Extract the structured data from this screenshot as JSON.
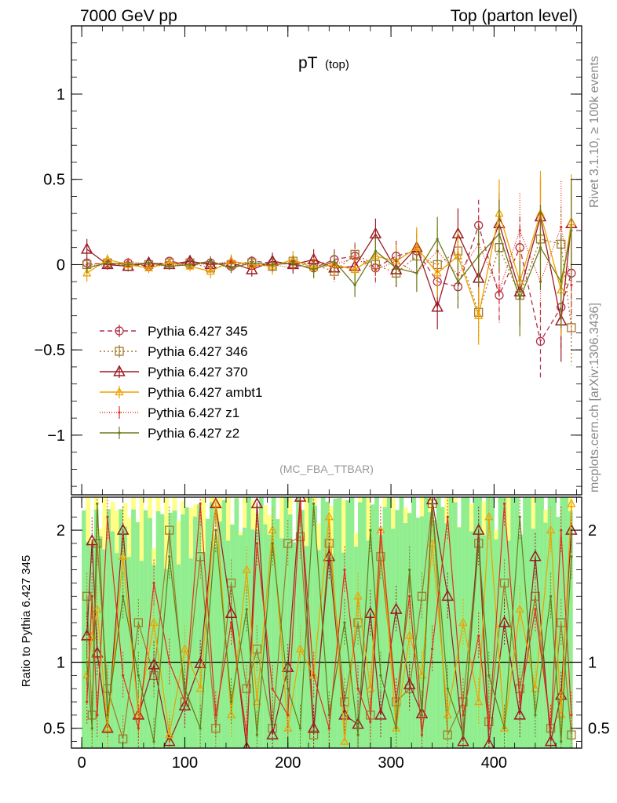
{
  "header": {
    "left": "7000 GeV pp",
    "right": "Top (parton level)"
  },
  "side_labels": {
    "rivet": "Rivet 3.1.10, ≥ 100k events",
    "mcplots": "mcplots.cern.ch [arXiv:1306.3436]"
  },
  "analysis_tag": "(MC_FBA_TTBAR)",
  "chart_data": [
    {
      "panel": "main",
      "type": "line",
      "title": "pT",
      "title_sub": "(top)",
      "xlabel": "",
      "ylabel": "",
      "xlim": [
        -10,
        485
      ],
      "ylim": [
        -1.35,
        1.4
      ],
      "y_ticks": [
        {
          "value": 1,
          "label": "1"
        },
        {
          "value": 0.5,
          "label": "0.5"
        },
        {
          "value": 0,
          "label": "0"
        },
        {
          "value": -0.5,
          "label": "−0.5"
        },
        {
          "value": -1,
          "label": "−1"
        }
      ],
      "x": [
        5,
        25,
        45,
        65,
        85,
        105,
        125,
        145,
        165,
        185,
        205,
        225,
        245,
        265,
        285,
        305,
        325,
        345,
        365,
        385,
        405,
        425,
        445,
        465,
        475
      ],
      "series": [
        {
          "name": "Pythia 6.427 345",
          "color": "#b0304a",
          "marker": "circle",
          "dash": "6,4",
          "values": [
            0.01,
            0.0,
            0.01,
            -0.01,
            0.02,
            0.0,
            0.01,
            -0.01,
            0.02,
            0.01,
            0.0,
            -0.02,
            0.03,
            0.05,
            -0.02,
            0.05,
            0.08,
            -0.1,
            -0.13,
            0.23,
            -0.18,
            0.1,
            -0.45,
            -0.25,
            -0.05
          ],
          "errors": [
            0.02,
            0.02,
            0.02,
            0.02,
            0.02,
            0.02,
            0.03,
            0.03,
            0.03,
            0.04,
            0.04,
            0.05,
            0.06,
            0.07,
            0.08,
            0.09,
            0.1,
            0.12,
            0.13,
            0.15,
            0.16,
            0.18,
            0.23,
            0.25,
            0.25
          ]
        },
        {
          "name": "Pythia 6.427 346",
          "color": "#a07a2a",
          "marker": "square",
          "dash": "2,3",
          "values": [
            0.0,
            0.01,
            -0.01,
            0.0,
            0.01,
            0.01,
            -0.02,
            0.0,
            0.01,
            -0.01,
            0.02,
            0.0,
            -0.04,
            0.06,
            0.0,
            -0.05,
            0.05,
            0.0,
            0.08,
            -0.28,
            0.1,
            -0.18,
            0.15,
            0.12,
            -0.37
          ],
          "errors": [
            0.02,
            0.02,
            0.02,
            0.02,
            0.02,
            0.02,
            0.03,
            0.03,
            0.03,
            0.04,
            0.04,
            0.05,
            0.06,
            0.07,
            0.08,
            0.09,
            0.1,
            0.12,
            0.13,
            0.15,
            0.16,
            0.18,
            0.2,
            0.22,
            0.22
          ]
        },
        {
          "name": "Pythia 6.427 370",
          "color": "#9b1b26",
          "marker": "triangle",
          "dash": "",
          "values": [
            0.09,
            0.0,
            -0.01,
            0.01,
            0.0,
            0.02,
            0.0,
            0.01,
            -0.03,
            0.02,
            0.0,
            0.03,
            -0.02,
            -0.01,
            0.18,
            -0.03,
            0.1,
            -0.25,
            0.18,
            -0.08,
            0.24,
            -0.16,
            0.28,
            -0.33,
            0.24
          ],
          "errors": [
            0.06,
            0.03,
            0.03,
            0.03,
            0.03,
            0.03,
            0.04,
            0.04,
            0.04,
            0.05,
            0.05,
            0.06,
            0.07,
            0.08,
            0.09,
            0.1,
            0.11,
            0.13,
            0.15,
            0.16,
            0.18,
            0.2,
            0.22,
            0.24,
            0.25
          ]
        },
        {
          "name": "Pythia 6.427 ambt1",
          "color": "#f0a000",
          "marker": "triangle-small",
          "dash": "",
          "values": [
            -0.05,
            0.03,
            0.0,
            -0.02,
            0.01,
            -0.01,
            -0.04,
            0.02,
            0.0,
            -0.01,
            0.03,
            -0.02,
            0.0,
            -0.03,
            0.05,
            0.02,
            0.1,
            -0.05,
            0.05,
            -0.3,
            0.3,
            -0.1,
            0.3,
            -0.15,
            0.25
          ],
          "errors": [
            0.05,
            0.03,
            0.03,
            0.03,
            0.03,
            0.03,
            0.04,
            0.04,
            0.04,
            0.05,
            0.05,
            0.06,
            0.07,
            0.08,
            0.09,
            0.1,
            0.12,
            0.14,
            0.15,
            0.17,
            0.2,
            0.22,
            0.25,
            0.27,
            0.28
          ]
        },
        {
          "name": "Pythia 6.427 z1",
          "color": "#e03020",
          "marker": "dot",
          "dash": "1,2",
          "values": [
            0.0,
            -0.01,
            0.02,
            0.0,
            -0.01,
            0.01,
            0.0,
            0.02,
            -0.01,
            0.0,
            -0.02,
            0.02,
            0.0,
            0.04,
            -0.03,
            0.02,
            -0.05,
            0.08,
            -0.06,
            0.12,
            -0.15,
            0.2,
            -0.1,
            0.22,
            -0.12
          ],
          "errors": [
            0.03,
            0.02,
            0.02,
            0.02,
            0.02,
            0.02,
            0.03,
            0.03,
            0.03,
            0.04,
            0.04,
            0.05,
            0.06,
            0.07,
            0.08,
            0.1,
            0.11,
            0.13,
            0.15,
            0.17,
            0.2,
            0.22,
            0.25,
            0.27,
            0.3
          ]
        },
        {
          "name": "Pythia 6.427 z2",
          "color": "#6b7a1a",
          "marker": "dot",
          "dash": "",
          "values": [
            -0.02,
            0.01,
            0.0,
            0.01,
            -0.01,
            0.0,
            0.02,
            -0.02,
            0.01,
            0.0,
            0.01,
            -0.03,
            0.02,
            -0.12,
            0.08,
            -0.02,
            -0.05,
            0.15,
            -0.1,
            0.05,
            0.18,
            -0.2,
            0.1,
            -0.1,
            0.2
          ],
          "errors": [
            0.03,
            0.02,
            0.02,
            0.02,
            0.02,
            0.02,
            0.03,
            0.03,
            0.03,
            0.04,
            0.04,
            0.05,
            0.06,
            0.07,
            0.08,
            0.1,
            0.11,
            0.13,
            0.15,
            0.17,
            0.2,
            0.22,
            0.25,
            0.27,
            0.3
          ]
        }
      ],
      "legend_position": "left"
    },
    {
      "panel": "ratio",
      "type": "line",
      "xlabel": "",
      "ylabel": "Ratio to Pythia 6.427 345",
      "xlim": [
        -10,
        485
      ],
      "ylim": [
        0.35,
        2.25
      ],
      "x_ticks": [
        {
          "value": 0,
          "label": "0"
        },
        {
          "value": 100,
          "label": "100"
        },
        {
          "value": 200,
          "label": "200"
        },
        {
          "value": 300,
          "label": "300"
        },
        {
          "value": 400,
          "label": "400"
        }
      ],
      "y_ticks": [
        {
          "value": 2,
          "label": "2"
        },
        {
          "value": 1,
          "label": "1"
        },
        {
          "value": 0.5,
          "label": "0.5"
        }
      ],
      "reference_line": 1,
      "band_colors": {
        "inner": "#90ee90",
        "outer": "#ffff88"
      },
      "x": [
        5,
        10,
        15,
        25,
        40,
        55,
        70,
        85,
        100,
        115,
        130,
        145,
        160,
        170,
        185,
        200,
        212,
        225,
        240,
        255,
        268,
        280,
        290,
        305,
        318,
        330,
        340,
        355,
        370,
        385,
        395,
        410,
        425,
        440,
        455,
        465,
        475
      ],
      "series": [
        {
          "name": "Pythia 6.427 346",
          "color": "#a07a2a",
          "values": [
            1.5,
            0.6,
            1.9,
            0.8,
            0.42,
            1.3,
            0.9,
            2.0,
            0.7,
            1.8,
            0.5,
            1.6,
            0.8,
            1.1,
            0.5,
            1.9,
            1.95,
            0.45,
            1.9,
            0.7,
            1.3,
            0.6,
            1.8,
            0.7,
            0.8,
            1.5,
            2.2,
            0.45,
            0.7,
            1.9,
            0.55,
            1.6,
            0.8,
            1.5,
            0.5,
            1.3,
            0.45
          ]
        },
        {
          "name": "Pythia 6.427 370",
          "color": "#9b1b26",
          "values": [
            1.2,
            1.92,
            1.07,
            0.5,
            2.0,
            0.6,
            0.98,
            0.4,
            0.67,
            0.99,
            2.2,
            1.37,
            0.35,
            2.2,
            0.45,
            0.96,
            2.25,
            0.5,
            1.8,
            0.6,
            0.53,
            1.37,
            0.6,
            1.4,
            0.83,
            0.61,
            2.23,
            1.5,
            0.4,
            2.0,
            0.38,
            1.3,
            0.6,
            1.8,
            0.4,
            0.75,
            2.0
          ]
        },
        {
          "name": "Pythia 6.427 ambt1",
          "color": "#f0a000",
          "values": [
            0.9,
            1.2,
            1.4,
            0.5,
            1.8,
            0.6,
            1.3,
            0.45,
            1.1,
            0.8,
            2.2,
            0.6,
            1.7,
            0.7,
            2.0,
            0.5,
            1.1,
            0.9,
            2.1,
            0.4,
            1.5,
            0.8,
            2.0,
            0.5,
            1.2,
            0.9,
            1.9,
            0.6,
            1.3,
            0.7,
            2.1,
            0.5,
            1.4,
            0.8,
            2.0,
            0.6,
            2.2
          ]
        },
        {
          "name": "Pythia 6.427 z1",
          "color": "#e03020",
          "values": [
            0.7,
            1.5,
            0.6,
            2.1,
            0.9,
            0.5,
            1.6,
            1.0,
            0.7,
            2.2,
            0.6,
            1.3,
            0.45,
            1.9,
            0.8,
            0.6,
            2.2,
            0.9,
            0.5,
            1.7,
            0.8,
            0.55,
            2.0,
            0.7,
            1.5,
            0.45,
            1.1,
            2.1,
            0.6,
            1.2,
            0.5,
            2.2,
            0.7,
            1.4,
            0.5,
            2.0,
            0.6
          ]
        },
        {
          "name": "Pythia 6.427 z2",
          "color": "#6b7a1a",
          "values": [
            1.0,
            0.5,
            2.2,
            0.6,
            1.5,
            0.9,
            0.4,
            1.8,
            0.8,
            0.5,
            2.0,
            0.7,
            1.4,
            0.45,
            1.9,
            0.8,
            0.5,
            2.2,
            0.6,
            1.3,
            0.45,
            2.0,
            0.9,
            0.5,
            1.7,
            0.6,
            2.2,
            0.8,
            0.45,
            1.9,
            0.9,
            0.5,
            2.1,
            0.6,
            1.5,
            0.4,
            1.8
          ]
        }
      ]
    }
  ]
}
